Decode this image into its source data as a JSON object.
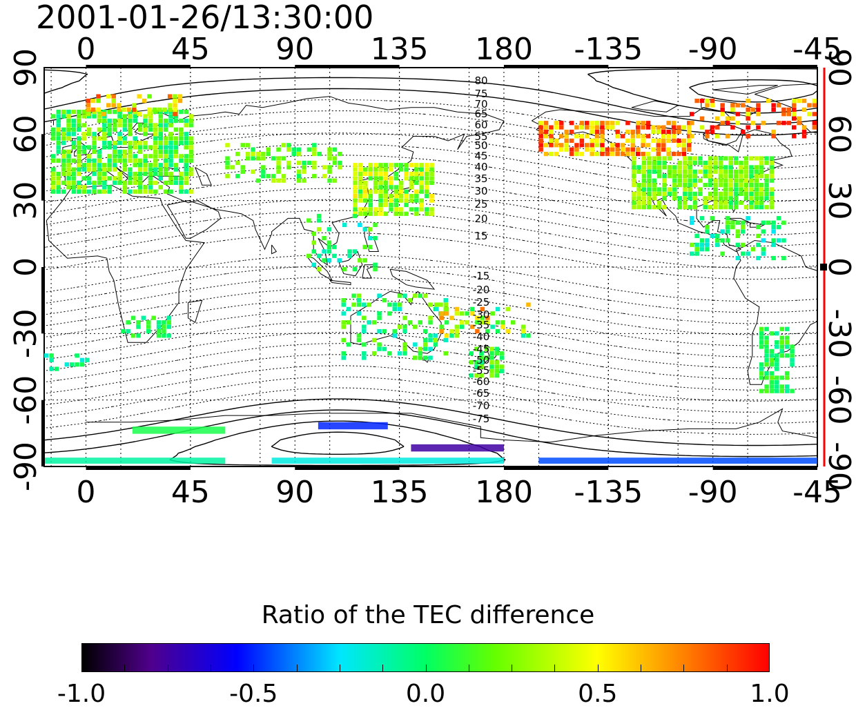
{
  "title": "2001-01-26/13:30:00",
  "map": {
    "top_lon_ticks": [
      "0",
      "45",
      "90",
      "135",
      "180",
      "-135",
      "-90",
      "-45"
    ],
    "bottom_lon_ticks": [
      "0",
      "45",
      "90",
      "135",
      "180",
      "-135",
      "-90",
      "-45"
    ],
    "left_lat_ticks": [
      "90",
      "60",
      "30",
      "0",
      "-30",
      "-60",
      "-90"
    ],
    "right_lat_ticks": [
      "90",
      "60",
      "30",
      "0",
      "-30",
      "-60",
      "-90"
    ],
    "lon_range": [
      -18,
      315
    ],
    "lat_range": [
      -90,
      90
    ],
    "grid": "dotted every 30 degrees",
    "projection": "equirectangular",
    "contour_labels_north": [
      "80",
      "75",
      "70",
      "65",
      "60",
      "55",
      "50",
      "45",
      "40",
      "35",
      "30",
      "25",
      "20",
      "15"
    ],
    "contour_labels_south": [
      "-15",
      "-20",
      "-25",
      "-30",
      "-35",
      "-40",
      "-45",
      "-50",
      "-55",
      "-60",
      "-65",
      "-70",
      "-75"
    ],
    "right_axis_color": "#ff0000"
  },
  "colorbar": {
    "title": "Ratio of the TEC difference",
    "min": -1.0,
    "max": 1.0,
    "tick_labels": [
      "-1.0",
      "-0.5",
      "0.0",
      "0.5",
      "1.0"
    ],
    "colormap": "rainbow: black-purple-blue-cyan-green-yellow-red"
  }
}
